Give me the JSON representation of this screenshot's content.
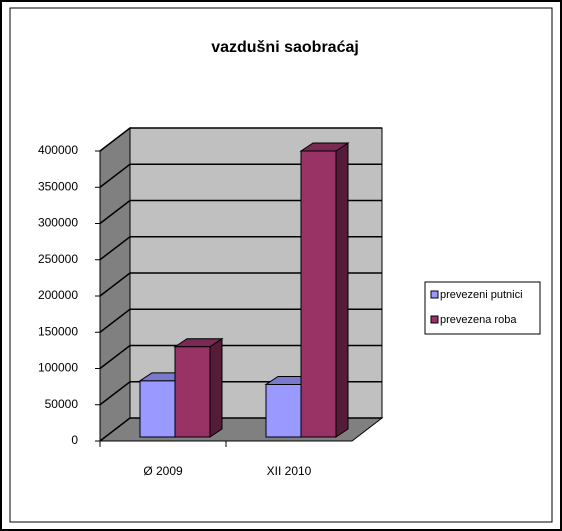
{
  "chart_data": {
    "type": "bar3d",
    "title": "vazdušni saobraćaj",
    "categories": [
      "Ø 2009",
      "XII 2010"
    ],
    "series": [
      {
        "name": "prevezeni putnici",
        "color": "#9999ff",
        "values": [
          83000,
          78000
        ]
      },
      {
        "name": "prevezena roba",
        "color": "#993366",
        "values": [
          130000,
          400000
        ]
      }
    ],
    "ylim": [
      0,
      400000
    ],
    "yticks": [
      0,
      50000,
      100000,
      150000,
      200000,
      250000,
      300000,
      350000,
      400000
    ],
    "grid": true,
    "legend": "right"
  }
}
